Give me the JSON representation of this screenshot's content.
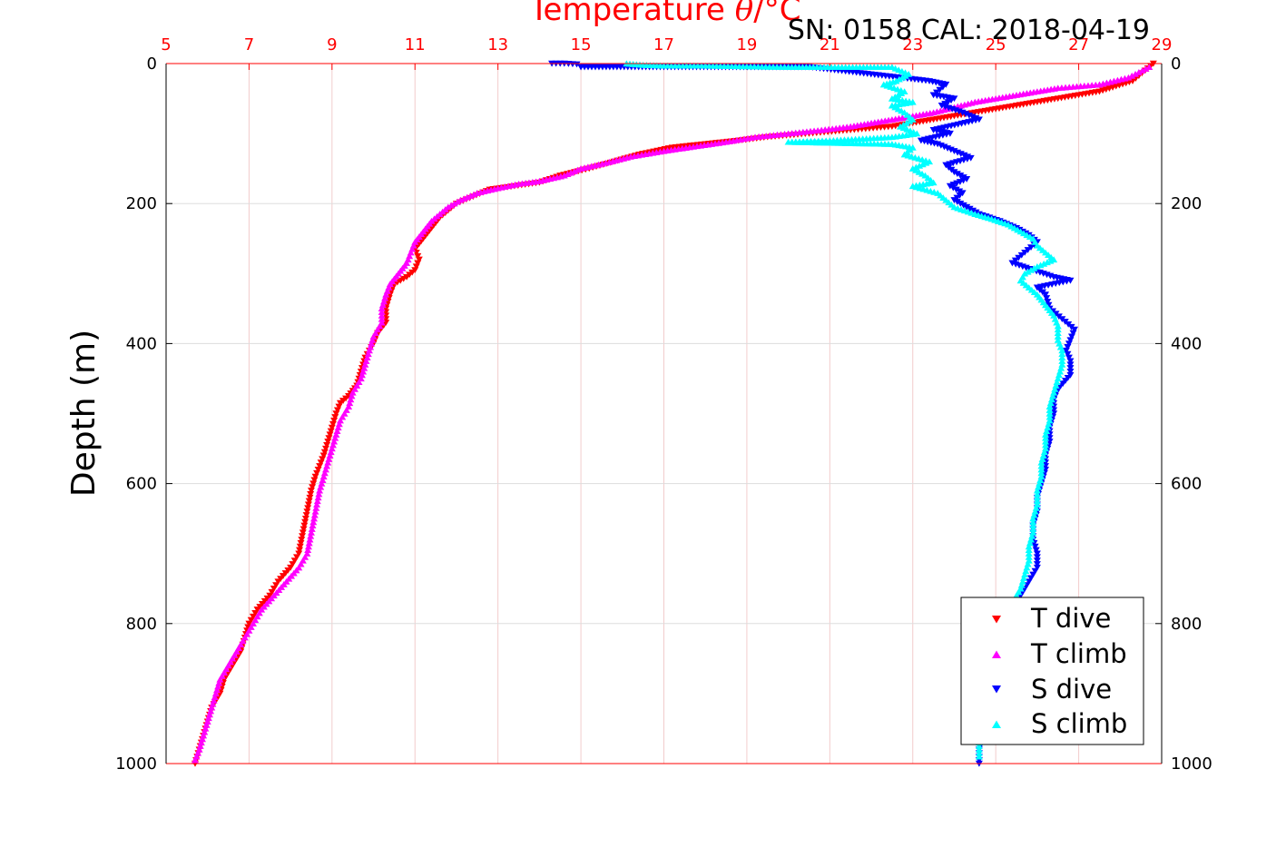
{
  "chart_data": {
    "type": "scatter",
    "title_parts": {
      "before": "Temperature ",
      "symbol": "θ",
      "after": "/°C"
    },
    "subtitle": "SN: 0158  CAL: 2018-04-19",
    "ylabel": "Depth (m)",
    "xlim": [
      5,
      29
    ],
    "ylim": [
      0,
      1000
    ],
    "y_reversed": true,
    "x_ticks": [
      "5",
      "7",
      "9",
      "11",
      "13",
      "15",
      "17",
      "19",
      "21",
      "23",
      "25",
      "27",
      "29"
    ],
    "y_ticks": [
      "0",
      "200",
      "400",
      "600",
      "800",
      "1000"
    ],
    "grid": true,
    "legend_position": "bottom-right",
    "series": [
      {
        "name": "T dive",
        "marker": "triangle-down",
        "color": "#ff0000",
        "points": [
          [
            28.8,
            0
          ],
          [
            28.6,
            10
          ],
          [
            28.3,
            25
          ],
          [
            27.5,
            40
          ],
          [
            26.5,
            50
          ],
          [
            25.5,
            60
          ],
          [
            24.5,
            70
          ],
          [
            23.5,
            80
          ],
          [
            22.5,
            90
          ],
          [
            21.5,
            95
          ],
          [
            20.5,
            100
          ],
          [
            19.5,
            105
          ],
          [
            18.8,
            110
          ],
          [
            18.0,
            115
          ],
          [
            17.2,
            120
          ],
          [
            16.4,
            130
          ],
          [
            15.8,
            140
          ],
          [
            15.2,
            150
          ],
          [
            14.5,
            160
          ],
          [
            14.0,
            170
          ],
          [
            13.4,
            175
          ],
          [
            12.8,
            180
          ],
          [
            12.4,
            190
          ],
          [
            12.0,
            200
          ],
          [
            11.8,
            210
          ],
          [
            11.6,
            220
          ],
          [
            11.4,
            235
          ],
          [
            11.2,
            250
          ],
          [
            11.0,
            265
          ],
          [
            11.1,
            280
          ],
          [
            11.0,
            295
          ],
          [
            10.8,
            305
          ],
          [
            10.5,
            315
          ],
          [
            10.4,
            330
          ],
          [
            10.3,
            350
          ],
          [
            10.3,
            370
          ],
          [
            10.1,
            385
          ],
          [
            10.0,
            400
          ],
          [
            9.8,
            420
          ],
          [
            9.7,
            440
          ],
          [
            9.6,
            460
          ],
          [
            9.4,
            475
          ],
          [
            9.2,
            485
          ],
          [
            9.1,
            500
          ],
          [
            9.0,
            520
          ],
          [
            8.9,
            540
          ],
          [
            8.8,
            560
          ],
          [
            8.7,
            575
          ],
          [
            8.6,
            590
          ],
          [
            8.5,
            610
          ],
          [
            8.4,
            640
          ],
          [
            8.3,
            670
          ],
          [
            8.2,
            700
          ],
          [
            8.0,
            720
          ],
          [
            7.7,
            740
          ],
          [
            7.5,
            760
          ],
          [
            7.2,
            780
          ],
          [
            7.0,
            800
          ],
          [
            6.9,
            820
          ],
          [
            6.8,
            840
          ],
          [
            6.6,
            860
          ],
          [
            6.4,
            880
          ],
          [
            6.3,
            900
          ],
          [
            6.1,
            920
          ],
          [
            6.0,
            940
          ],
          [
            5.9,
            960
          ],
          [
            5.8,
            980
          ],
          [
            5.7,
            1000
          ]
        ]
      },
      {
        "name": "T climb",
        "marker": "triangle-up",
        "color": "#ff00ff",
        "points": [
          [
            28.7,
            5
          ],
          [
            28.2,
            20
          ],
          [
            27.5,
            30
          ],
          [
            26.5,
            35
          ],
          [
            25.5,
            45
          ],
          [
            24.5,
            55
          ],
          [
            23.5,
            70
          ],
          [
            22.5,
            80
          ],
          [
            21.5,
            90
          ],
          [
            20.8,
            95
          ],
          [
            20.0,
            100
          ],
          [
            19.2,
            105
          ],
          [
            18.5,
            112
          ],
          [
            17.8,
            118
          ],
          [
            17.0,
            125
          ],
          [
            16.2,
            133
          ],
          [
            15.6,
            142
          ],
          [
            15.0,
            150
          ],
          [
            14.6,
            160
          ],
          [
            14.0,
            168
          ],
          [
            13.5,
            172
          ],
          [
            13.0,
            178
          ],
          [
            12.5,
            185
          ],
          [
            12.1,
            195
          ],
          [
            11.8,
            205
          ],
          [
            11.6,
            215
          ],
          [
            11.4,
            225
          ],
          [
            11.2,
            240
          ],
          [
            11.0,
            255
          ],
          [
            10.9,
            270
          ],
          [
            10.8,
            285
          ],
          [
            10.6,
            300
          ],
          [
            10.4,
            315
          ],
          [
            10.3,
            330
          ],
          [
            10.2,
            350
          ],
          [
            10.2,
            370
          ],
          [
            10.0,
            390
          ],
          [
            9.9,
            410
          ],
          [
            9.8,
            430
          ],
          [
            9.7,
            450
          ],
          [
            9.5,
            470
          ],
          [
            9.4,
            490
          ],
          [
            9.2,
            510
          ],
          [
            9.1,
            530
          ],
          [
            9.0,
            550
          ],
          [
            8.9,
            570
          ],
          [
            8.8,
            590
          ],
          [
            8.7,
            610
          ],
          [
            8.6,
            640
          ],
          [
            8.5,
            670
          ],
          [
            8.4,
            700
          ],
          [
            8.2,
            720
          ],
          [
            7.9,
            740
          ],
          [
            7.6,
            760
          ],
          [
            7.3,
            780
          ],
          [
            7.1,
            800
          ],
          [
            6.9,
            820
          ],
          [
            6.7,
            840
          ],
          [
            6.5,
            860
          ],
          [
            6.3,
            880
          ],
          [
            6.2,
            900
          ],
          [
            6.1,
            920
          ],
          [
            6.0,
            940
          ],
          [
            5.9,
            960
          ],
          [
            5.8,
            980
          ],
          [
            5.7,
            995
          ]
        ]
      },
      {
        "name": "S dive",
        "marker": "triangle-down",
        "color": "#0000ff",
        "points": [
          [
            14.3,
            0
          ],
          [
            14.6,
            0
          ],
          [
            14.9,
            1
          ],
          [
            15.0,
            5
          ],
          [
            17.0,
            5
          ],
          [
            20.5,
            5
          ],
          [
            23.4,
            25
          ],
          [
            23.8,
            30
          ],
          [
            23.5,
            45
          ],
          [
            24.0,
            50
          ],
          [
            23.7,
            60
          ],
          [
            24.2,
            70
          ],
          [
            24.6,
            80
          ],
          [
            23.5,
            95
          ],
          [
            23.9,
            100
          ],
          [
            23.2,
            110
          ],
          [
            23.6,
            115
          ],
          [
            24.0,
            125
          ],
          [
            24.4,
            135
          ],
          [
            23.8,
            145
          ],
          [
            24.0,
            155
          ],
          [
            24.3,
            165
          ],
          [
            23.9,
            175
          ],
          [
            24.2,
            185
          ],
          [
            24.0,
            195
          ],
          [
            24.3,
            205
          ],
          [
            24.6,
            215
          ],
          [
            25.1,
            225
          ],
          [
            25.5,
            235
          ],
          [
            25.8,
            245
          ],
          [
            26.0,
            255
          ],
          [
            25.7,
            270
          ],
          [
            25.4,
            285
          ],
          [
            25.9,
            295
          ],
          [
            26.4,
            305
          ],
          [
            26.8,
            310
          ],
          [
            26.0,
            320
          ],
          [
            26.2,
            330
          ],
          [
            26.3,
            350
          ],
          [
            26.6,
            365
          ],
          [
            26.9,
            380
          ],
          [
            26.8,
            395
          ],
          [
            26.7,
            410
          ],
          [
            26.8,
            425
          ],
          [
            26.8,
            445
          ],
          [
            26.5,
            465
          ],
          [
            26.4,
            480
          ],
          [
            26.4,
            500
          ],
          [
            26.3,
            520
          ],
          [
            26.3,
            540
          ],
          [
            26.2,
            560
          ],
          [
            26.2,
            580
          ],
          [
            26.1,
            600
          ],
          [
            26.0,
            620
          ],
          [
            26.0,
            640
          ],
          [
            25.9,
            660
          ],
          [
            25.9,
            680
          ],
          [
            26.0,
            700
          ],
          [
            26.0,
            720
          ],
          [
            25.8,
            740
          ],
          [
            25.6,
            760
          ],
          [
            25.4,
            780
          ],
          [
            25.3,
            800
          ],
          [
            25.2,
            820
          ],
          [
            25.0,
            840
          ],
          [
            24.9,
            860
          ],
          [
            24.8,
            880
          ],
          [
            24.8,
            900
          ],
          [
            24.7,
            920
          ],
          [
            24.7,
            940
          ],
          [
            24.7,
            960
          ],
          [
            24.6,
            980
          ],
          [
            24.6,
            1000
          ]
        ]
      },
      {
        "name": "S climb",
        "marker": "triangle-up",
        "color": "#00ffff",
        "points": [
          [
            16.1,
            0
          ],
          [
            16.5,
            2
          ],
          [
            17.0,
            3
          ],
          [
            18.0,
            3
          ],
          [
            19.0,
            4
          ],
          [
            20.0,
            5
          ],
          [
            22.5,
            5
          ],
          [
            22.9,
            15
          ],
          [
            22.6,
            25
          ],
          [
            22.3,
            30
          ],
          [
            22.8,
            40
          ],
          [
            22.5,
            50
          ],
          [
            23.0,
            55
          ],
          [
            22.5,
            60
          ],
          [
            22.8,
            70
          ],
          [
            23.0,
            80
          ],
          [
            22.7,
            90
          ],
          [
            23.1,
            100
          ],
          [
            22.5,
            105
          ],
          [
            21.0,
            110
          ],
          [
            20.0,
            112
          ],
          [
            22.5,
            115
          ],
          [
            23.0,
            120
          ],
          [
            22.8,
            130
          ],
          [
            23.4,
            140
          ],
          [
            23.0,
            150
          ],
          [
            23.3,
            160
          ],
          [
            23.5,
            170
          ],
          [
            23.0,
            175
          ],
          [
            23.6,
            185
          ],
          [
            23.8,
            195
          ],
          [
            24.0,
            205
          ],
          [
            24.5,
            215
          ],
          [
            24.9,
            222
          ],
          [
            25.3,
            230
          ],
          [
            25.6,
            240
          ],
          [
            25.9,
            250
          ],
          [
            26.0,
            260
          ],
          [
            26.2,
            270
          ],
          [
            26.4,
            280
          ],
          [
            26.0,
            290
          ],
          [
            25.7,
            300
          ],
          [
            25.6,
            310
          ],
          [
            25.8,
            320
          ],
          [
            26.0,
            330
          ],
          [
            26.2,
            345
          ],
          [
            26.4,
            360
          ],
          [
            26.5,
            375
          ],
          [
            26.5,
            395
          ],
          [
            26.6,
            410
          ],
          [
            26.6,
            430
          ],
          [
            26.5,
            450
          ],
          [
            26.4,
            470
          ],
          [
            26.3,
            490
          ],
          [
            26.3,
            510
          ],
          [
            26.2,
            530
          ],
          [
            26.2,
            550
          ],
          [
            26.1,
            570
          ],
          [
            26.1,
            590
          ],
          [
            26.0,
            610
          ],
          [
            26.0,
            630
          ],
          [
            25.9,
            650
          ],
          [
            25.9,
            670
          ],
          [
            25.8,
            690
          ],
          [
            25.8,
            710
          ],
          [
            25.7,
            730
          ],
          [
            25.6,
            750
          ],
          [
            25.4,
            770
          ],
          [
            25.2,
            790
          ],
          [
            25.1,
            810
          ],
          [
            25.0,
            830
          ],
          [
            24.9,
            850
          ],
          [
            24.8,
            870
          ],
          [
            24.8,
            890
          ],
          [
            24.7,
            910
          ],
          [
            24.7,
            930
          ],
          [
            24.7,
            950
          ],
          [
            24.6,
            970
          ],
          [
            24.6,
            990
          ]
        ]
      }
    ]
  }
}
